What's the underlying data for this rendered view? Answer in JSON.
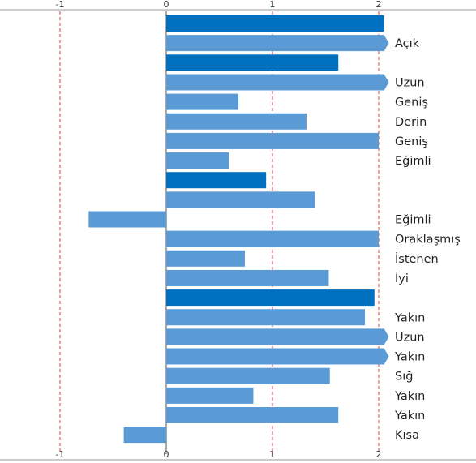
{
  "chart_data": {
    "type": "bar",
    "orientation": "horizontal",
    "xlim": [
      -1.0,
      2.0
    ],
    "xticks": [
      -1,
      0,
      1,
      2
    ],
    "tick_labels": [
      "-1",
      "0",
      "1",
      "2"
    ],
    "grid": "dashed vertical lines at ticks",
    "axis_positions": [
      "top",
      "bottom"
    ],
    "colors": {
      "dark": "#0070c0",
      "light": "#5b9bd5",
      "grid": "#e0403a",
      "baseline": "#999999"
    },
    "rows": [
      {
        "label": "",
        "value": 2.05,
        "shade": "dark",
        "arrow": false
      },
      {
        "label": "Açık",
        "value": 2.05,
        "shade": "light",
        "arrow": true
      },
      {
        "label": "",
        "value": 1.62,
        "shade": "dark",
        "arrow": false
      },
      {
        "label": "Uzun",
        "value": 2.05,
        "shade": "light",
        "arrow": true
      },
      {
        "label": "Geniş",
        "value": 0.68,
        "shade": "light",
        "arrow": false
      },
      {
        "label": "Derin",
        "value": 1.32,
        "shade": "light",
        "arrow": false
      },
      {
        "label": "Geniş",
        "value": 2.0,
        "shade": "light",
        "arrow": false
      },
      {
        "label": "Eğimli",
        "value": 0.59,
        "shade": "light",
        "arrow": false
      },
      {
        "label": "",
        "value": 0.94,
        "shade": "dark",
        "arrow": false
      },
      {
        "label": "",
        "value": 1.4,
        "shade": "light",
        "arrow": false
      },
      {
        "label": "Eğimli",
        "value": -0.73,
        "shade": "light",
        "arrow": false
      },
      {
        "label": "Oraklaşmış",
        "value": 2.0,
        "shade": "light",
        "arrow": false
      },
      {
        "label": "İstenen",
        "value": 0.74,
        "shade": "light",
        "arrow": false
      },
      {
        "label": "İyi",
        "value": 1.53,
        "shade": "light",
        "arrow": false
      },
      {
        "label": "",
        "value": 1.96,
        "shade": "dark",
        "arrow": false
      },
      {
        "label": "Yakın",
        "value": 1.87,
        "shade": "light",
        "arrow": false
      },
      {
        "label": "Uzun",
        "value": 2.05,
        "shade": "light",
        "arrow": true
      },
      {
        "label": "Yakın",
        "value": 2.05,
        "shade": "light",
        "arrow": true
      },
      {
        "label": "Sığ",
        "value": 1.54,
        "shade": "light",
        "arrow": false
      },
      {
        "label": "Yakın",
        "value": 0.82,
        "shade": "light",
        "arrow": false
      },
      {
        "label": "Yakın",
        "value": 1.62,
        "shade": "light",
        "arrow": false
      },
      {
        "label": "Kısa",
        "value": -0.4,
        "shade": "light",
        "arrow": false
      }
    ]
  }
}
